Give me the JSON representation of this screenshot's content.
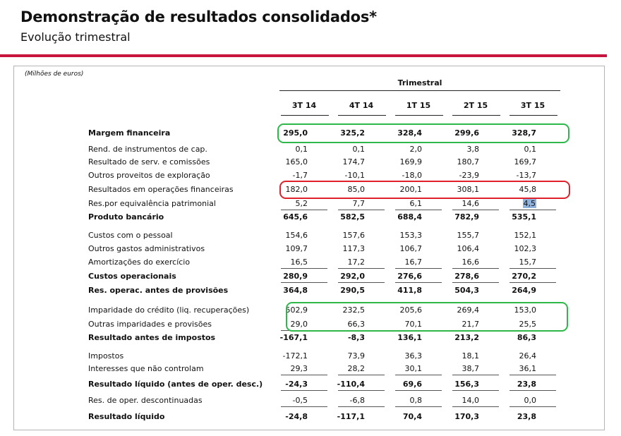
{
  "header": {
    "title": "Demonstração de resultados consolidados*",
    "subtitle": "Evolução trimestral"
  },
  "table": {
    "unit_note": "(Milhões de euros)",
    "group_label": "Trimestral",
    "columns": [
      "3T 14",
      "4T 14",
      "1T 15",
      "2T 15",
      "3T 15"
    ],
    "rows": [
      {
        "label": "Margem financeira",
        "values": [
          "295,0",
          "325,2",
          "328,4",
          "299,6",
          "328,7"
        ],
        "bold": true
      },
      {
        "label": "Rend. de instrumentos de cap.",
        "values": [
          "0,1",
          "0,1",
          "2,0",
          "3,8",
          "0,1"
        ],
        "bold": false
      },
      {
        "label": "Resultado de serv. e comissões",
        "values": [
          "165,0",
          "174,7",
          "169,9",
          "180,7",
          "169,7"
        ],
        "bold": false
      },
      {
        "label": "Outros proveitos de exploração",
        "values": [
          "-1,7",
          "-10,1",
          "-18,0",
          "-23,9",
          "-13,7"
        ],
        "bold": false
      },
      {
        "label": "Resultados em operações financeiras",
        "values": [
          "182,0",
          "85,0",
          "200,1",
          "308,1",
          "45,8"
        ],
        "bold": false
      },
      {
        "label": "Res.por equivalência patrimonial",
        "values": [
          "5,2",
          "7,7",
          "6,1",
          "14,6",
          "4,5"
        ],
        "bold": false
      },
      {
        "label": "Produto bancário",
        "values": [
          "645,6",
          "582,5",
          "688,4",
          "782,9",
          "535,1"
        ],
        "bold": true
      },
      {
        "label": "Custos com o pessoal",
        "values": [
          "154,6",
          "157,6",
          "153,3",
          "155,7",
          "152,1"
        ],
        "bold": false
      },
      {
        "label": "Outros gastos administrativos",
        "values": [
          "109,7",
          "117,3",
          "106,7",
          "106,4",
          "102,3"
        ],
        "bold": false
      },
      {
        "label": "Amortizações do exercício",
        "values": [
          "16,5",
          "17,2",
          "16,7",
          "16,6",
          "15,7"
        ],
        "bold": false
      },
      {
        "label": "Custos operacionais",
        "values": [
          "280,9",
          "292,0",
          "276,6",
          "278,6",
          "270,2"
        ],
        "bold": true
      },
      {
        "label": "Res. operac. antes de provisões",
        "values": [
          "364,8",
          "290,5",
          "411,8",
          "504,3",
          "264,9"
        ],
        "bold": true
      },
      {
        "label": "Imparidade do crédito (liq. recuperações)",
        "values": [
          "502,9",
          "232,5",
          "205,6",
          "269,4",
          "153,0"
        ],
        "bold": false
      },
      {
        "label": "Outras imparidades e provisões",
        "values": [
          "29,0",
          "66,3",
          "70,1",
          "21,7",
          "25,5"
        ],
        "bold": false
      },
      {
        "label": "Resultado antes de impostos",
        "values": [
          "-167,1",
          "-8,3",
          "136,1",
          "213,2",
          "86,3"
        ],
        "bold": true
      },
      {
        "label": "Impostos",
        "values": [
          "-172,1",
          "73,9",
          "36,3",
          "18,1",
          "26,4"
        ],
        "bold": false
      },
      {
        "label": "Interesses que não controlam",
        "values": [
          "29,3",
          "28,2",
          "30,1",
          "38,7",
          "36,1"
        ],
        "bold": false
      },
      {
        "label": "Resultado líquido (antes de oper. desc.)",
        "values": [
          "-24,3",
          "-110,4",
          "69,6",
          "156,3",
          "23,8"
        ],
        "bold": true
      },
      {
        "label": "Res. de oper. descontinuadas",
        "values": [
          "-0,5",
          "-6,8",
          "0,8",
          "14,0",
          "0,0"
        ],
        "bold": false
      },
      {
        "label": "Resultado líquido",
        "values": [
          "-24,8",
          "-117,1",
          "70,4",
          "170,3",
          "23,8"
        ],
        "bold": true
      }
    ]
  },
  "colors": {
    "accent": "#c8143c",
    "highlight_green": "#2fb84a",
    "highlight_red": "#e0202a",
    "selection": "#8fb3dc"
  }
}
